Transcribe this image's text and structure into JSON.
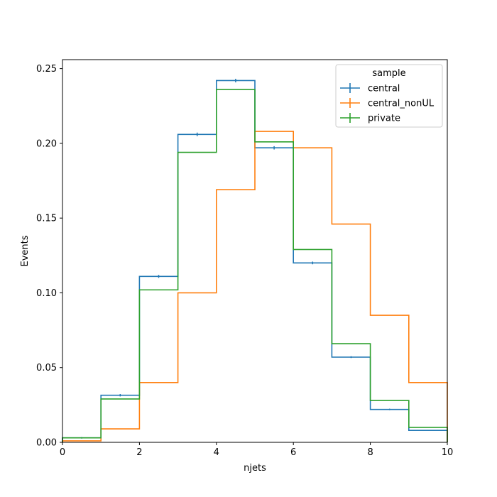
{
  "chart_data": {
    "type": "line",
    "drawstyle": "steps",
    "xlabel": "njets",
    "ylabel": "Events",
    "xlim": [
      0,
      10
    ],
    "ylim": [
      0,
      0.256
    ],
    "xticks": [
      0,
      2,
      4,
      6,
      8,
      10
    ],
    "xtick_labels": [
      "0",
      "2",
      "4",
      "6",
      "8",
      "10"
    ],
    "yticks": [
      0,
      0.05,
      0.1,
      0.15,
      0.2,
      0.25
    ],
    "ytick_labels": [
      "0.00",
      "0.05",
      "0.10",
      "0.15",
      "0.20",
      "0.25"
    ],
    "grid": false,
    "bin_edges": [
      0,
      1,
      2,
      3,
      4,
      5,
      6,
      7,
      8,
      9,
      10
    ],
    "legend": {
      "title": "sample",
      "placement": "top-right"
    },
    "series": [
      {
        "name": "central",
        "color": "#1f77b4",
        "values": [
          0.003,
          0.0315,
          0.111,
          0.206,
          0.242,
          0.197,
          0.12,
          0.057,
          0.022,
          0.008
        ],
        "errors": [
          0.0005,
          0.0008,
          0.001,
          0.0012,
          0.0012,
          0.0011,
          0.0009,
          0.0006,
          0.0005,
          0.0003
        ]
      },
      {
        "name": "central_nonUL",
        "color": "#ff7f0e",
        "values": [
          0.001,
          0.009,
          0.04,
          0.1,
          0.169,
          0.208,
          0.197,
          0.146,
          0.085,
          0.04
        ],
        "errors": [
          0,
          0,
          0,
          0,
          0,
          0,
          0,
          0,
          0,
          0
        ]
      },
      {
        "name": "private",
        "color": "#2ca02c",
        "values": [
          0.003,
          0.029,
          0.102,
          0.194,
          0.236,
          0.201,
          0.129,
          0.066,
          0.028,
          0.01
        ],
        "errors": [
          0,
          0,
          0,
          0,
          0,
          0,
          0,
          0,
          0,
          0
        ]
      }
    ]
  }
}
